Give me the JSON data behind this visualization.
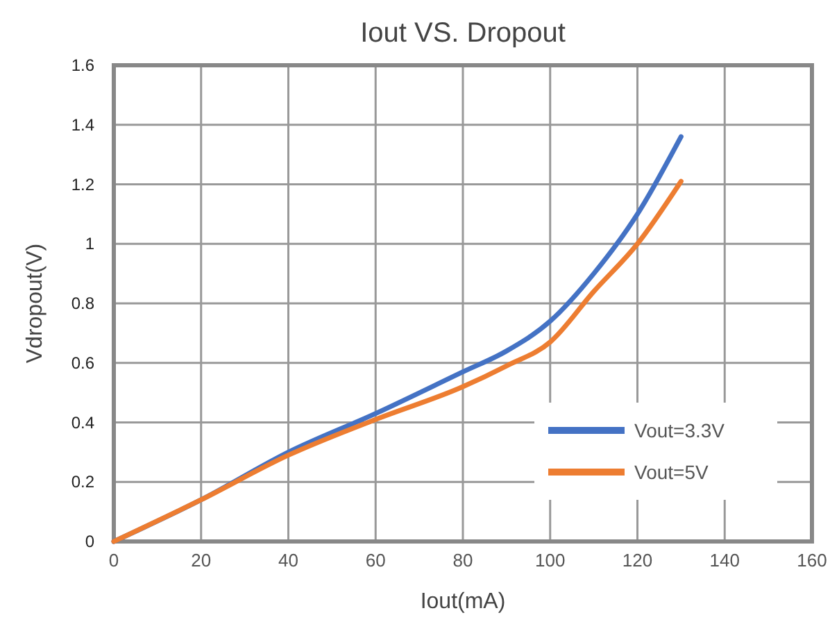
{
  "chart_data": {
    "type": "line",
    "title": "Iout VS. Dropout",
    "xlabel": "Iout(mA)",
    "ylabel": "Vdropout(V)",
    "x": [
      0,
      20,
      40,
      60,
      80,
      90,
      100,
      110,
      120,
      130
    ],
    "series": [
      {
        "name": "Vout=3.3V",
        "color": "#4472c4",
        "values": [
          0,
          0.14,
          0.3,
          0.43,
          0.57,
          0.64,
          0.74,
          0.9,
          1.1,
          1.36
        ]
      },
      {
        "name": "Vout=5V",
        "color": "#ed7d31",
        "values": [
          0,
          0.14,
          0.29,
          0.41,
          0.52,
          0.59,
          0.67,
          0.84,
          1.0,
          1.21
        ]
      }
    ],
    "xlim": [
      0,
      160
    ],
    "xticks": [
      0,
      20,
      40,
      60,
      80,
      100,
      120,
      140,
      160
    ],
    "ylim": [
      0,
      1.6
    ],
    "yticks": [
      0,
      0.2,
      0.4,
      0.6,
      0.8,
      1,
      1.2,
      1.4,
      1.6
    ],
    "grid": true,
    "legend": "bottom right",
    "marker": "none",
    "line_style": "solid"
  }
}
